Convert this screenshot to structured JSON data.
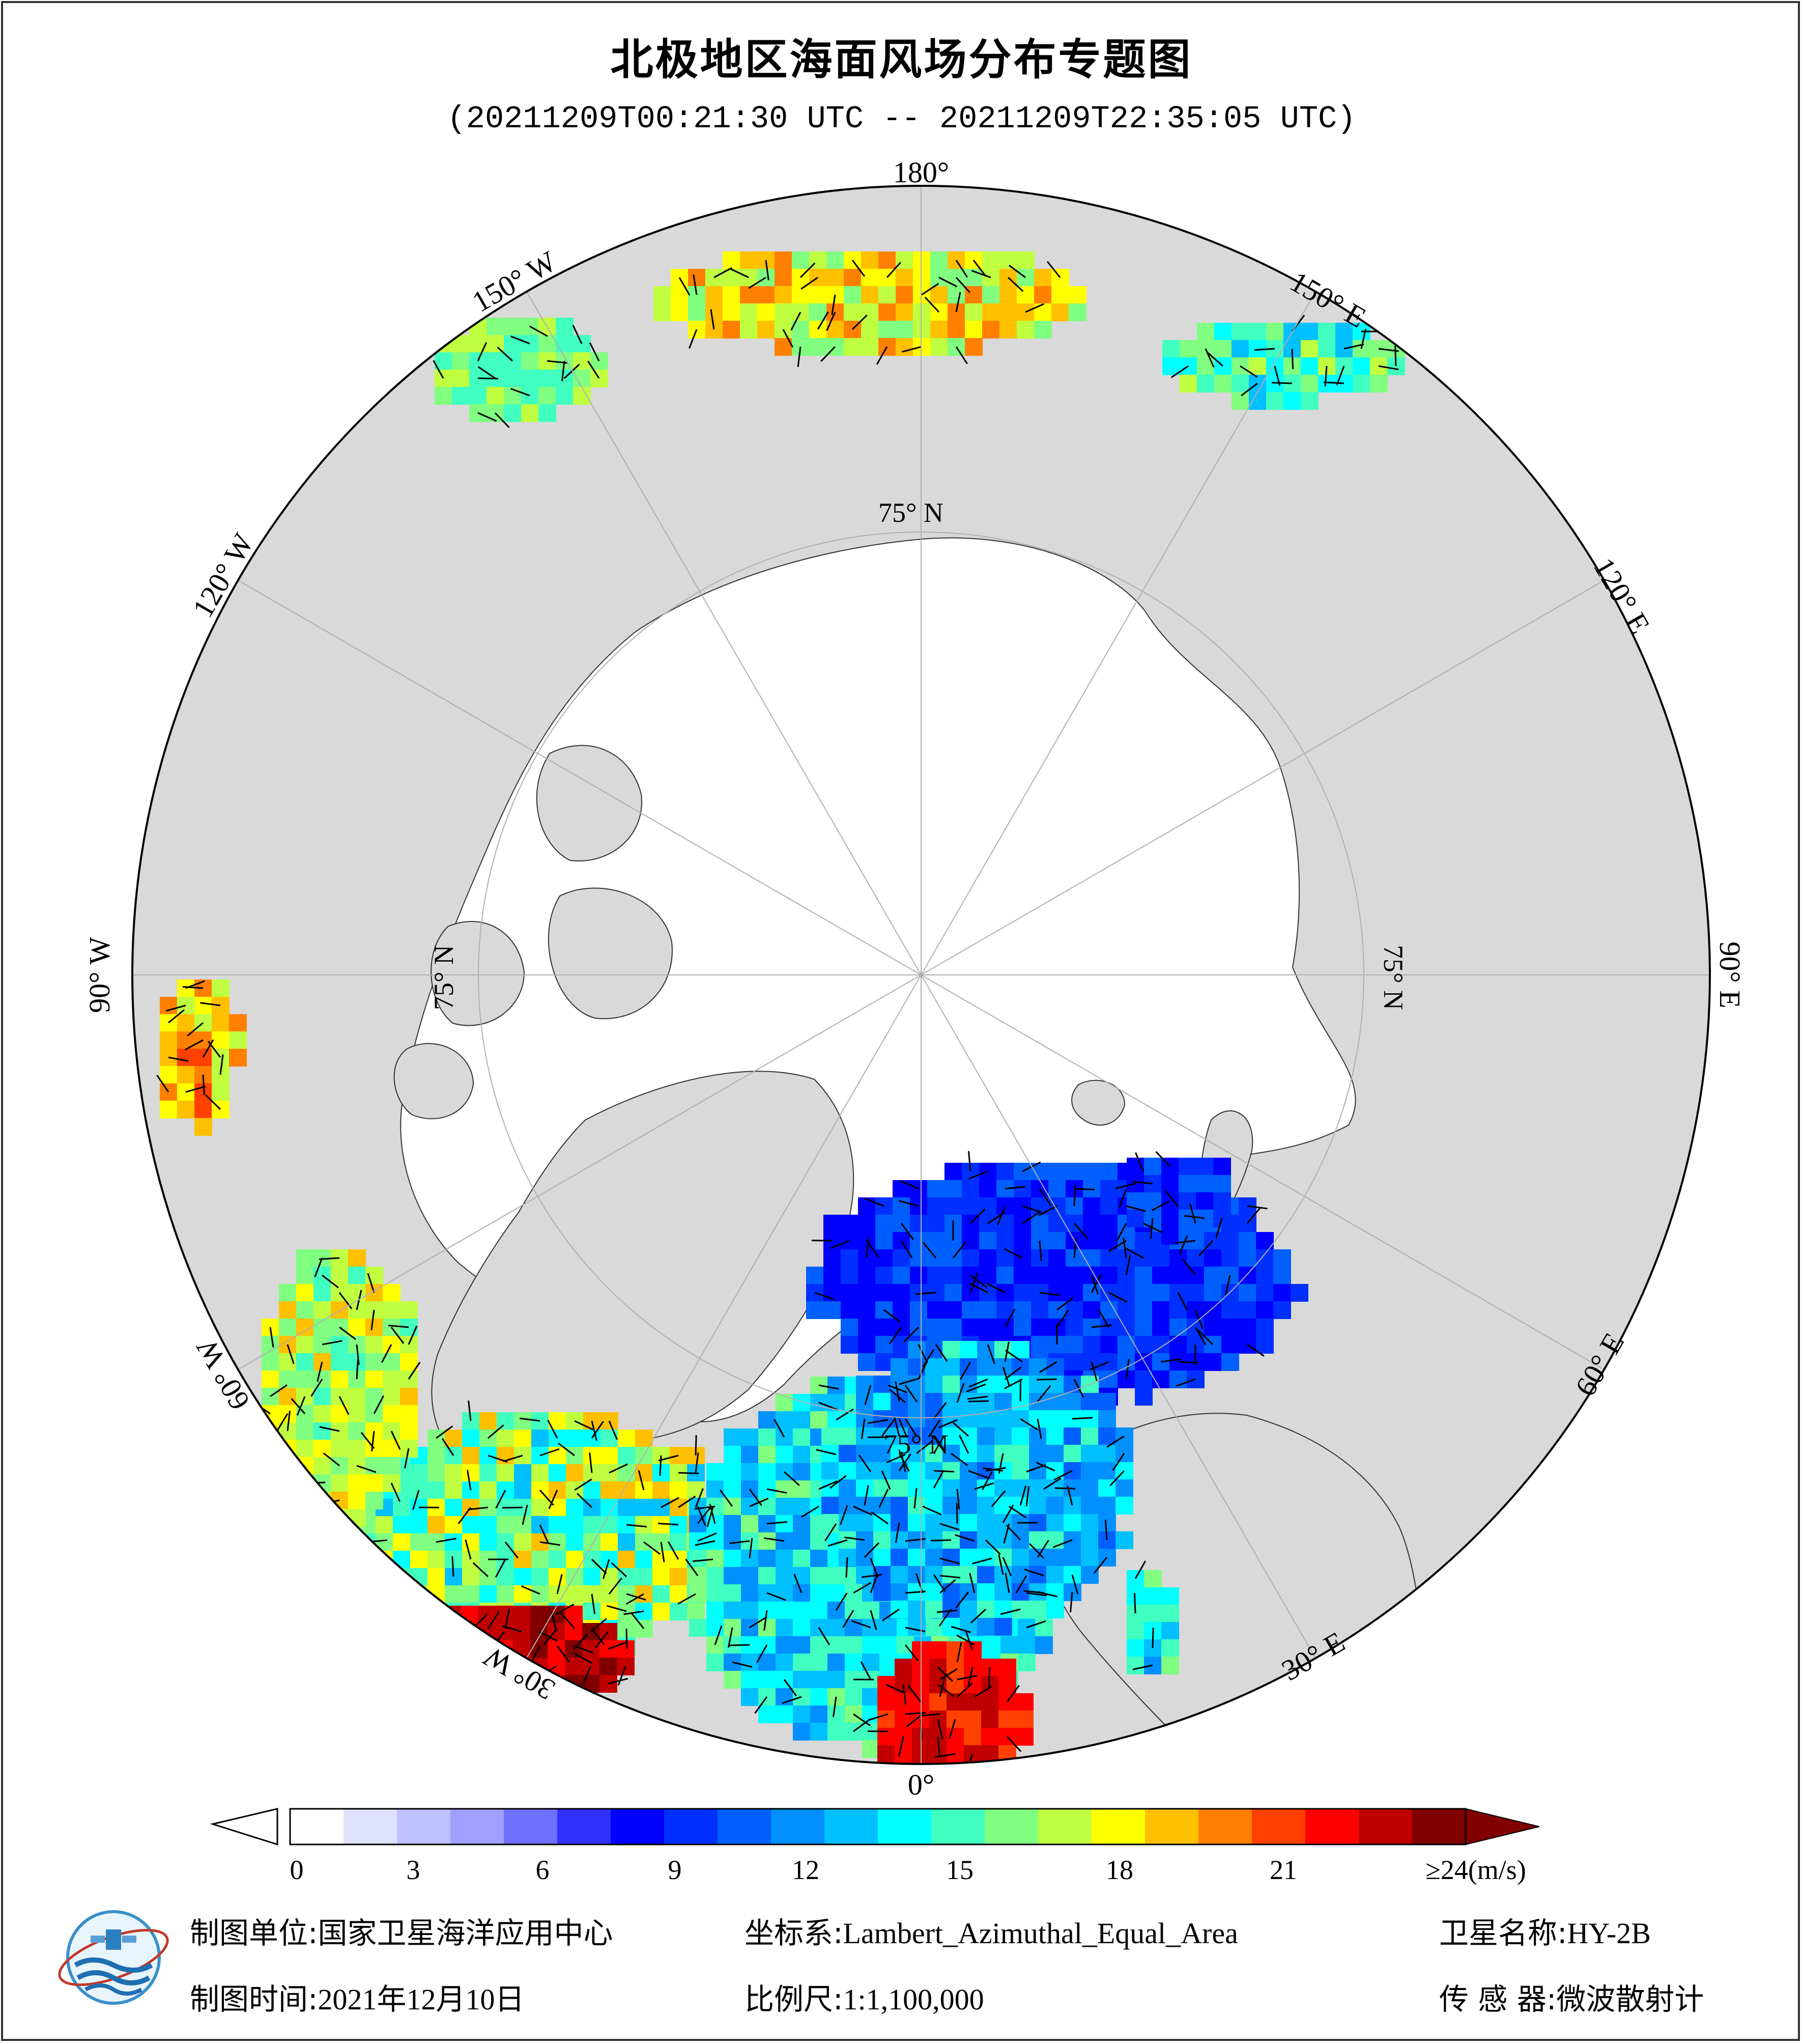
{
  "title": "北极地区海面风场分布专题图",
  "subtitle": "(20211209T00:21:30 UTC -- 20211209T22:35:05 UTC)",
  "map": {
    "projection": "Lambert_Azimuthal_Equal_Area",
    "center": "North Pole",
    "longitude_labels": [
      "180°",
      "150° E",
      "120° E",
      "90° E",
      "60° E",
      "30° E",
      "0°",
      "30° W",
      "60° W",
      "90° W",
      "120° W",
      "150° W"
    ],
    "latitude_labels": [
      "75° N",
      "75° N",
      "75° N",
      "75° N"
    ],
    "colors": {
      "ocean_no_data": "#ffffff",
      "land": "#d9d9d9",
      "sea_ice_interior": "#ffffff"
    }
  },
  "colorbar": {
    "ticks": [
      "0",
      "3",
      "6",
      "9",
      "12",
      "15",
      "18",
      "21"
    ],
    "max_label": "≥24",
    "unit": "(m/s)",
    "colors": [
      "#ffffff",
      "#e0e0ff",
      "#c0c0ff",
      "#a0a0ff",
      "#7070ff",
      "#3030ff",
      "#0000ff",
      "#0030ff",
      "#0060ff",
      "#0090ff",
      "#00c0ff",
      "#00ffff",
      "#40ffc0",
      "#80ff80",
      "#c0ff40",
      "#ffff00",
      "#ffc000",
      "#ff8000",
      "#ff4000",
      "#ff0000",
      "#c00000",
      "#800000"
    ]
  },
  "footer": {
    "unit_label": "制图单位:",
    "unit_value": "国家卫星海洋应用中心",
    "date_label": "制图时间:",
    "date_value": "2021年12月10日",
    "coord_label": "坐标系:",
    "coord_value": "Lambert_Azimuthal_Equal_Area",
    "scale_label": "比例尺:",
    "scale_value": "1:1,100,000",
    "satellite_label": "卫星名称:",
    "satellite_value": "HY-2B",
    "sensor_label": "传 感 器:",
    "sensor_value": "微波散射计"
  }
}
